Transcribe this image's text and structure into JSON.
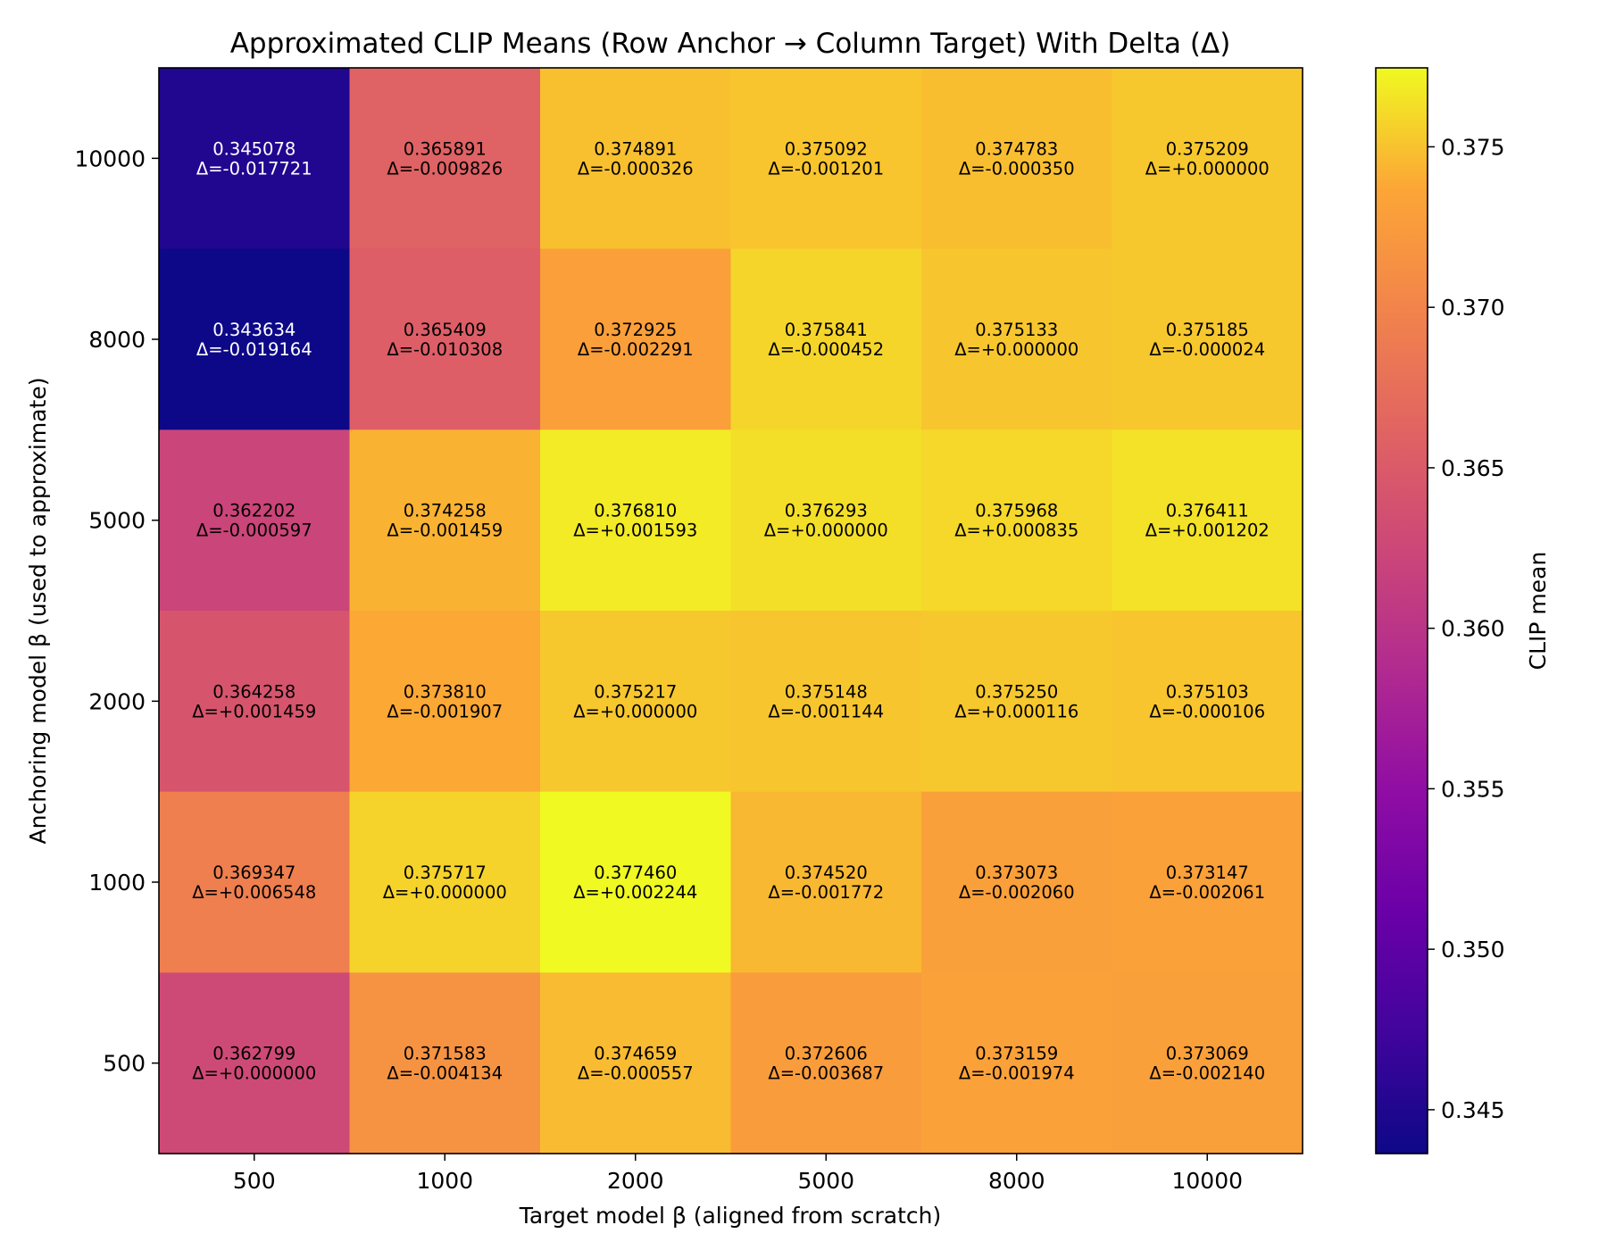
{
  "chart_data": {
    "type": "heatmap",
    "title": "Approximated CLIP Means (Row Anchor → Column Target) With Delta (Δ)",
    "xlabel": "Target model β (aligned from scratch)",
    "ylabel": "Anchoring model β (used to approximate)",
    "x_categories": [
      "500",
      "1000",
      "2000",
      "5000",
      "8000",
      "10000"
    ],
    "y_categories": [
      "10000",
      "8000",
      "5000",
      "2000",
      "1000",
      "500"
    ],
    "values": [
      [
        0.345078,
        0.365891,
        0.374891,
        0.375092,
        0.374783,
        0.375209
      ],
      [
        0.343634,
        0.365409,
        0.372925,
        0.375841,
        0.375133,
        0.375185
      ],
      [
        0.362202,
        0.374258,
        0.37681,
        0.376293,
        0.375968,
        0.376411
      ],
      [
        0.364258,
        0.37381,
        0.375217,
        0.375148,
        0.37525,
        0.375103
      ],
      [
        0.369347,
        0.375717,
        0.37746,
        0.37452,
        0.373073,
        0.373147
      ],
      [
        0.362799,
        0.371583,
        0.374659,
        0.372606,
        0.373159,
        0.373069
      ]
    ],
    "value_labels": [
      [
        "0.345078",
        "0.365891",
        "0.374891",
        "0.375092",
        "0.374783",
        "0.375209"
      ],
      [
        "0.343634",
        "0.365409",
        "0.372925",
        "0.375841",
        "0.375133",
        "0.375185"
      ],
      [
        "0.362202",
        "0.374258",
        "0.376810",
        "0.376293",
        "0.375968",
        "0.376411"
      ],
      [
        "0.364258",
        "0.373810",
        "0.375217",
        "0.375148",
        "0.375250",
        "0.375103"
      ],
      [
        "0.369347",
        "0.375717",
        "0.377460",
        "0.374520",
        "0.373073",
        "0.373147"
      ],
      [
        "0.362799",
        "0.371583",
        "0.374659",
        "0.372606",
        "0.373159",
        "0.373069"
      ]
    ],
    "delta_labels": [
      [
        "Δ=-0.017721",
        "Δ=-0.009826",
        "Δ=-0.000326",
        "Δ=-0.001201",
        "Δ=-0.000350",
        "Δ=+0.000000"
      ],
      [
        "Δ=-0.019164",
        "Δ=-0.010308",
        "Δ=-0.002291",
        "Δ=-0.000452",
        "Δ=+0.000000",
        "Δ=-0.000024"
      ],
      [
        "Δ=-0.000597",
        "Δ=-0.001459",
        "Δ=+0.001593",
        "Δ=+0.000000",
        "Δ=+0.000835",
        "Δ=+0.001202"
      ],
      [
        "Δ=+0.001459",
        "Δ=-0.001907",
        "Δ=+0.000000",
        "Δ=-0.001144",
        "Δ=+0.000116",
        "Δ=-0.000106"
      ],
      [
        "Δ=+0.006548",
        "Δ=+0.000000",
        "Δ=+0.002244",
        "Δ=-0.001772",
        "Δ=-0.002060",
        "Δ=-0.002061"
      ],
      [
        "Δ=+0.000000",
        "Δ=-0.004134",
        "Δ=-0.000557",
        "Δ=-0.003687",
        "Δ=-0.001974",
        "Δ=-0.002140"
      ]
    ],
    "colormap": "plasma",
    "vmin": 0.343634,
    "vmax": 0.37746,
    "colorbar": {
      "label": "CLIP mean",
      "ticks": [
        0.345,
        0.35,
        0.355,
        0.36,
        0.365,
        0.37,
        0.375
      ],
      "tick_labels": [
        "0.345",
        "0.350",
        "0.355",
        "0.360",
        "0.365",
        "0.370",
        "0.375"
      ]
    },
    "text_color_dark": "#000000",
    "text_color_light": "#ffffff"
  }
}
